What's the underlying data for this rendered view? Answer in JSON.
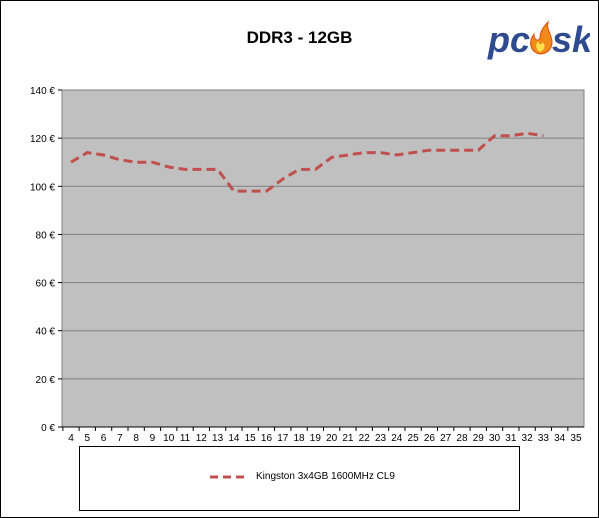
{
  "chart_data": {
    "type": "line",
    "title": "DDR3 - 12GB",
    "xlabel": "",
    "ylabel": "",
    "x": [
      4,
      5,
      6,
      7,
      8,
      9,
      10,
      11,
      12,
      13,
      14,
      15,
      16,
      17,
      18,
      19,
      20,
      21,
      22,
      23,
      24,
      25,
      26,
      27,
      28,
      29,
      30,
      31,
      32,
      33,
      34,
      35
    ],
    "xlim": [
      4,
      35
    ],
    "ylim": [
      0,
      140
    ],
    "y_ticks": [
      "0 €",
      "20 €",
      "40 €",
      "60 €",
      "80 €",
      "100 €",
      "120 €",
      "140 €"
    ],
    "y_tick_values": [
      0,
      20,
      40,
      60,
      80,
      100,
      120,
      140
    ],
    "grid": "horizontal",
    "legend_position": "bottom",
    "series": [
      {
        "name": "Kingston 3x4GB 1600MHz CL9",
        "color": "#c0504d",
        "style": "dashed",
        "x": [
          4,
          5,
          6,
          7,
          8,
          9,
          10,
          11,
          12,
          13,
          14,
          15,
          16,
          17,
          18,
          19,
          20,
          21,
          22,
          23,
          24,
          25,
          26,
          27,
          28,
          29,
          30,
          31,
          32,
          33
        ],
        "values": [
          110,
          114,
          113,
          111,
          110,
          110,
          108,
          107,
          107,
          107,
          98,
          98,
          98,
          103,
          107,
          107,
          112,
          113,
          114,
          114,
          113,
          114,
          115,
          115,
          115,
          115,
          121,
          121,
          122,
          121
        ]
      }
    ],
    "plot_background": "#c0c0c0"
  },
  "logo": {
    "text": "pcosk"
  }
}
